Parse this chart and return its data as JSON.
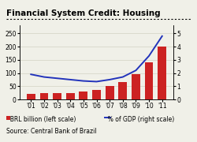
{
  "years": [
    "'01",
    "'02",
    "'03",
    "'04",
    "'05",
    "'06",
    "'07",
    "'08",
    "'09",
    "'10",
    "'11"
  ],
  "brl_billion": [
    22,
    23,
    23,
    25,
    30,
    37,
    50,
    65,
    95,
    140,
    200
  ],
  "pct_gdp": [
    1.9,
    1.7,
    1.6,
    1.5,
    1.4,
    1.35,
    1.5,
    1.7,
    2.2,
    3.3,
    4.8
  ],
  "bar_color": "#cc2222",
  "line_color": "#2233bb",
  "title": "Financial System Credit: Housing",
  "ylim_left": [
    0,
    280
  ],
  "ylim_right": [
    0,
    5.6
  ],
  "yticks_left": [
    0,
    50,
    100,
    150,
    200,
    250
  ],
  "yticks_right": [
    0,
    1,
    2,
    3,
    4,
    5
  ],
  "source": "Source: Central Bank of Brazil",
  "legend_bar": "BRL billion (left scale)",
  "legend_line": "% of GDP (right scale)",
  "bg_color": "#f0f0e8",
  "title_fontsize": 7.5,
  "tick_fontsize": 5.5,
  "legend_fontsize": 5.5,
  "source_fontsize": 5.5
}
